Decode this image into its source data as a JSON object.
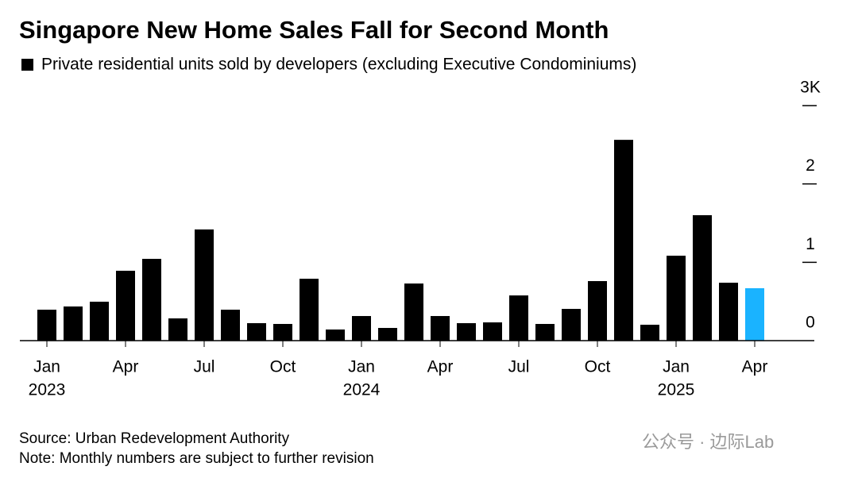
{
  "chart_data": {
    "type": "bar",
    "title": "Singapore New Home Sales Fall for Second Month",
    "subtitle": "Private residential units sold by developers (excluding Executive Condominiums)",
    "categories": [
      "Jan",
      null,
      null,
      "Apr",
      null,
      null,
      "Jul",
      null,
      null,
      "Oct",
      null,
      null,
      "Jan",
      null,
      null,
      "Apr",
      null,
      null,
      "Jul",
      null,
      null,
      "Oct",
      null,
      null,
      "Jan",
      null,
      null,
      "Apr"
    ],
    "category_years": [
      "2023",
      null,
      null,
      null,
      null,
      null,
      null,
      null,
      null,
      null,
      null,
      null,
      "2024",
      null,
      null,
      null,
      null,
      null,
      null,
      null,
      null,
      null,
      null,
      null,
      "2025",
      null,
      null,
      null
    ],
    "values": [
      395,
      436,
      497,
      892,
      1044,
      284,
      1419,
      395,
      223,
      213,
      790,
      142,
      314,
      162,
      729,
      314,
      223,
      233,
      577,
      213,
      405,
      760,
      2563,
      203,
      1084,
      1601,
      739,
      669
    ],
    "colors": [
      "#000000",
      "#000000",
      "#000000",
      "#000000",
      "#000000",
      "#000000",
      "#000000",
      "#000000",
      "#000000",
      "#000000",
      "#000000",
      "#000000",
      "#000000",
      "#000000",
      "#000000",
      "#000000",
      "#000000",
      "#000000",
      "#000000",
      "#000000",
      "#000000",
      "#000000",
      "#000000",
      "#000000",
      "#000000",
      "#000000",
      "#000000",
      "#1ab3ff"
    ],
    "ylim": [
      0,
      3000
    ],
    "yticks": [
      0,
      {
        "value": 1000,
        "label": "1"
      },
      {
        "value": 2000,
        "label": "2"
      },
      {
        "value": 3000,
        "label": "3K"
      }
    ],
    "source": "Source: Urban Redevelopment Authority",
    "note": "Note: Monthly numbers are subject to further revision",
    "watermark": "公众号 · 边际Lab"
  }
}
